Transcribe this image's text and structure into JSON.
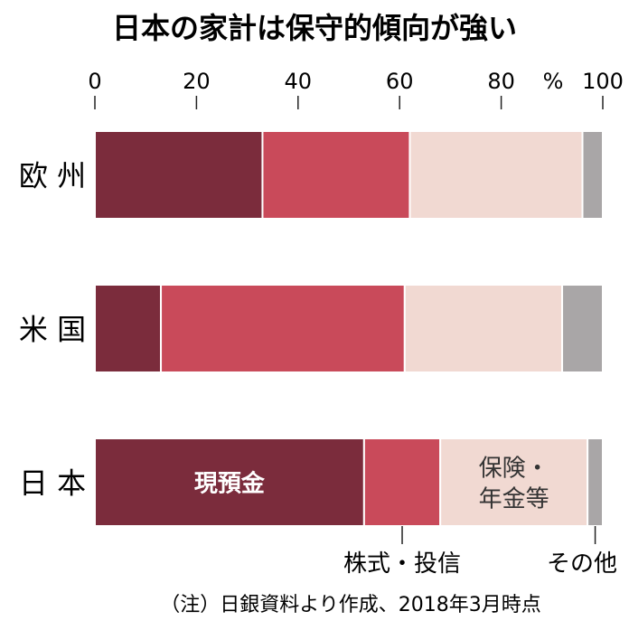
{
  "chart_data": {
    "type": "bar",
    "orientation": "horizontal",
    "stacked": true,
    "title": "日本の家計は保守的傾向が強い",
    "unit_label": "%",
    "xlim": [
      0,
      100
    ],
    "x_ticks": [
      "0",
      "20",
      "40",
      "60",
      "80",
      "100"
    ],
    "categories": [
      "欧 州",
      "米 国",
      "日 本"
    ],
    "series": [
      {
        "name": "現預金",
        "color": "#7b2c3c",
        "values": [
          33,
          13,
          53
        ]
      },
      {
        "name": "株式・投信",
        "color": "#c94a5a",
        "values": [
          29,
          48,
          15
        ]
      },
      {
        "name": "保険・年金等",
        "color": "#f1d9d2",
        "values": [
          34,
          31,
          29
        ]
      },
      {
        "name": "その他",
        "color": "#a9a6a7",
        "values": [
          4,
          8,
          3
        ]
      }
    ],
    "inside_labels": [
      {
        "series": 0,
        "category": 2,
        "lines": [
          "現預金"
        ],
        "color": "#ffffff"
      },
      {
        "series": 2,
        "category": 2,
        "lines": [
          "保険・",
          "年金等"
        ],
        "color": "#333333"
      }
    ],
    "callouts": [
      {
        "series": 1,
        "category": 2,
        "text": "株式・投信"
      },
      {
        "series": 3,
        "category": 2,
        "text": "その他"
      }
    ],
    "note": "（注）日銀資料より作成、2018年3月時点",
    "grid": false
  }
}
